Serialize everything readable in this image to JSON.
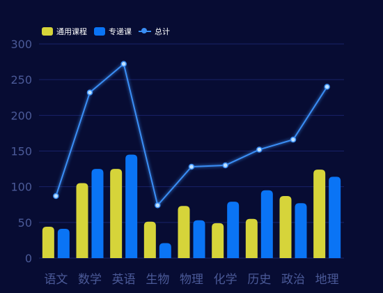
{
  "colors": {
    "background": "#070c33",
    "grid": "#18226a",
    "axis_text": "#4b5a98",
    "series_general": "#d6d43a",
    "series_special": "#0a74f5",
    "series_total": "#3a8ef5",
    "legend_text": "#ffffff"
  },
  "chart_data": {
    "type": "bar",
    "categories": [
      "语文",
      "数学",
      "英语",
      "生物",
      "物理",
      "化学",
      "历史",
      "政治",
      "地理"
    ],
    "series": [
      {
        "name": "通用课程",
        "type": "bar",
        "values": [
          44,
          105,
          125,
          51,
          73,
          49,
          55,
          87,
          124
        ]
      },
      {
        "name": "专递课",
        "type": "bar",
        "values": [
          41,
          125,
          145,
          21,
          53,
          79,
          95,
          77,
          114
        ]
      },
      {
        "name": "总计",
        "type": "line",
        "values": [
          87,
          232,
          272,
          74,
          128,
          130,
          152,
          166,
          240
        ]
      }
    ],
    "ylim": [
      0,
      300
    ],
    "yticks": [
      "0",
      "50",
      "100",
      "150",
      "200",
      "250",
      "300"
    ],
    "grid": true,
    "legend_position": "top-left"
  }
}
